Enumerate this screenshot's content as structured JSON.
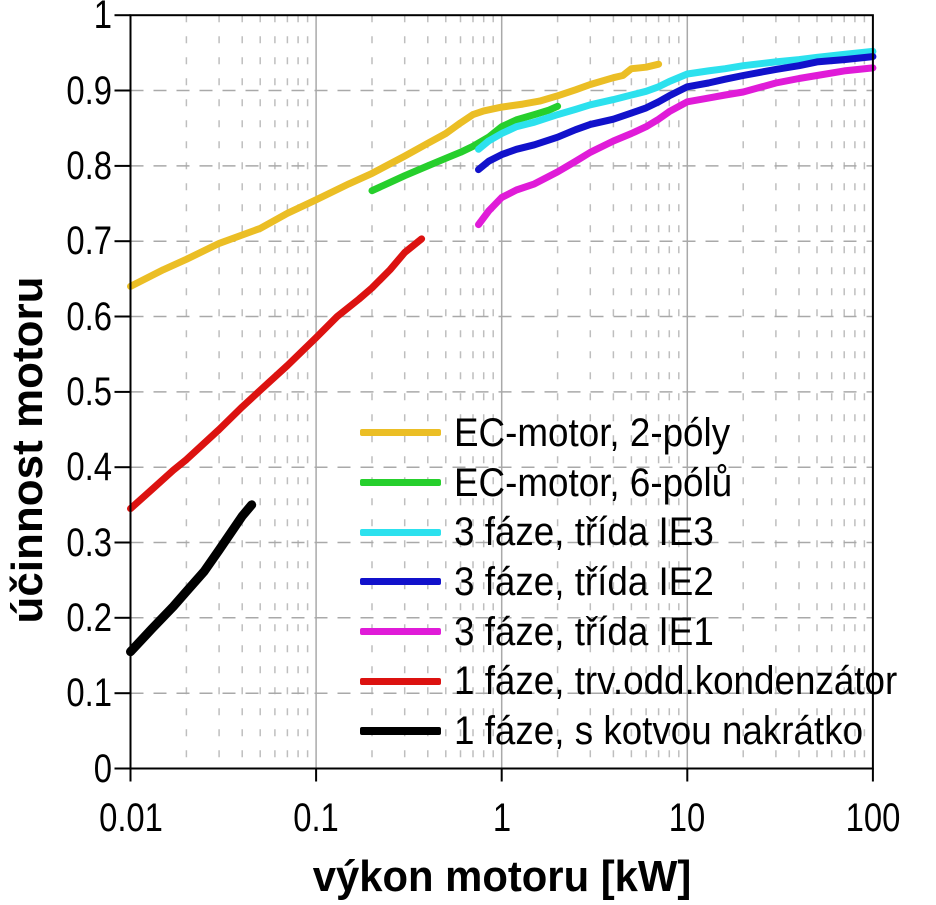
{
  "figure": {
    "x_axis_title": "výkon motoru [kW]",
    "y_axis_title": "účinnost motoru"
  },
  "chart_data": {
    "type": "line",
    "title": "",
    "xlabel": "výkon motoru [kW]",
    "ylabel": "účinnost motoru",
    "x_scale": "log",
    "xlim": [
      0.01,
      100
    ],
    "ylim": [
      0,
      1
    ],
    "x_ticks": [
      {
        "v": 0.01,
        "label": "0.01"
      },
      {
        "v": 0.1,
        "label": "0.1"
      },
      {
        "v": 1,
        "label": "1"
      },
      {
        "v": 10,
        "label": "10"
      },
      {
        "v": 100,
        "label": "100"
      }
    ],
    "y_ticks": [
      {
        "v": 0,
        "label": "0"
      },
      {
        "v": 0.1,
        "label": "0.1"
      },
      {
        "v": 0.2,
        "label": "0.2"
      },
      {
        "v": 0.3,
        "label": "0.3"
      },
      {
        "v": 0.4,
        "label": "0.4"
      },
      {
        "v": 0.5,
        "label": "0.5"
      },
      {
        "v": 0.6,
        "label": "0.6"
      },
      {
        "v": 0.7,
        "label": "0.7"
      },
      {
        "v": 0.8,
        "label": "0.8"
      },
      {
        "v": 0.9,
        "label": "0.9"
      },
      {
        "v": 1,
        "label": "1"
      }
    ],
    "grid": {
      "horizontal_major": "dashed",
      "vertical_minor": "dashed",
      "vertical_decade": "solid",
      "color_major": "#A9A9A9",
      "color_minor": "#BEBEBE"
    },
    "legend_position": "inside-lower-right",
    "axis_color": "#000000",
    "series": [
      {
        "name": "EC-motor, 2-póly",
        "color": "#EBBE25",
        "width": 7,
        "points": [
          [
            0.01,
            0.64
          ],
          [
            0.015,
            0.662
          ],
          [
            0.02,
            0.676
          ],
          [
            0.03,
            0.697
          ],
          [
            0.05,
            0.717
          ],
          [
            0.07,
            0.737
          ],
          [
            0.1,
            0.755
          ],
          [
            0.15,
            0.776
          ],
          [
            0.2,
            0.79
          ],
          [
            0.3,
            0.813
          ],
          [
            0.4,
            0.83
          ],
          [
            0.5,
            0.843
          ],
          [
            0.6,
            0.857
          ],
          [
            0.7,
            0.868
          ],
          [
            0.8,
            0.873
          ],
          [
            1,
            0.878
          ],
          [
            1.3,
            0.882
          ],
          [
            1.6,
            0.886
          ],
          [
            2,
            0.893
          ],
          [
            2.5,
            0.901
          ],
          [
            3,
            0.908
          ],
          [
            4,
            0.917
          ],
          [
            4.5,
            0.92
          ],
          [
            5,
            0.929
          ],
          [
            6,
            0.931
          ],
          [
            7,
            0.935
          ]
        ]
      },
      {
        "name": "EC-motor, 6-pólů",
        "color": "#26CF2C",
        "width": 7,
        "points": [
          [
            0.2,
            0.767
          ],
          [
            0.25,
            0.778
          ],
          [
            0.3,
            0.787
          ],
          [
            0.4,
            0.8
          ],
          [
            0.5,
            0.81
          ],
          [
            0.6,
            0.818
          ],
          [
            0.7,
            0.826
          ],
          [
            0.85,
            0.838
          ],
          [
            1,
            0.852
          ],
          [
            1.2,
            0.861
          ],
          [
            1.5,
            0.868
          ],
          [
            1.8,
            0.874
          ],
          [
            2,
            0.879
          ]
        ]
      },
      {
        "name": "3 fáze, třída IE3",
        "color": "#2CE1EE",
        "width": 7,
        "points": [
          [
            0.75,
            0.822
          ],
          [
            0.85,
            0.833
          ],
          [
            1,
            0.843
          ],
          [
            1.2,
            0.852
          ],
          [
            1.5,
            0.858
          ],
          [
            2,
            0.868
          ],
          [
            2.5,
            0.875
          ],
          [
            3,
            0.881
          ],
          [
            4,
            0.888
          ],
          [
            5,
            0.894
          ],
          [
            6,
            0.899
          ],
          [
            7,
            0.905
          ],
          [
            8,
            0.912
          ],
          [
            10,
            0.922
          ],
          [
            13,
            0.926
          ],
          [
            16,
            0.929
          ],
          [
            20,
            0.933
          ],
          [
            30,
            0.938
          ],
          [
            40,
            0.941
          ],
          [
            50,
            0.944
          ],
          [
            70,
            0.948
          ],
          [
            100,
            0.952
          ]
        ]
      },
      {
        "name": "3 fáze, třída IE2",
        "color": "#1111CB",
        "width": 7,
        "points": [
          [
            0.75,
            0.795
          ],
          [
            0.85,
            0.806
          ],
          [
            1,
            0.815
          ],
          [
            1.2,
            0.822
          ],
          [
            1.5,
            0.828
          ],
          [
            2,
            0.838
          ],
          [
            2.5,
            0.848
          ],
          [
            3,
            0.855
          ],
          [
            4,
            0.862
          ],
          [
            5,
            0.87
          ],
          [
            6,
            0.877
          ],
          [
            7,
            0.885
          ],
          [
            8,
            0.893
          ],
          [
            10,
            0.905
          ],
          [
            13,
            0.91
          ],
          [
            16,
            0.915
          ],
          [
            20,
            0.92
          ],
          [
            30,
            0.928
          ],
          [
            40,
            0.933
          ],
          [
            50,
            0.938
          ],
          [
            70,
            0.941
          ],
          [
            100,
            0.945
          ]
        ]
      },
      {
        "name": "3 fáze, třída IE1",
        "color": "#E01BD8",
        "width": 7,
        "points": [
          [
            0.75,
            0.722
          ],
          [
            0.85,
            0.74
          ],
          [
            1,
            0.758
          ],
          [
            1.2,
            0.768
          ],
          [
            1.5,
            0.776
          ],
          [
            2,
            0.792
          ],
          [
            2.5,
            0.806
          ],
          [
            3,
            0.818
          ],
          [
            4,
            0.833
          ],
          [
            5,
            0.843
          ],
          [
            6,
            0.852
          ],
          [
            7,
            0.862
          ],
          [
            8,
            0.872
          ],
          [
            10,
            0.885
          ],
          [
            13,
            0.89
          ],
          [
            16,
            0.894
          ],
          [
            20,
            0.898
          ],
          [
            30,
            0.91
          ],
          [
            40,
            0.916
          ],
          [
            50,
            0.92
          ],
          [
            70,
            0.926
          ],
          [
            100,
            0.93
          ]
        ]
      },
      {
        "name": "1 fáze, trv.odd.kondenzátor",
        "color": "#DC1210",
        "width": 7,
        "points": [
          [
            0.01,
            0.345
          ],
          [
            0.013,
            0.37
          ],
          [
            0.017,
            0.396
          ],
          [
            0.02,
            0.41
          ],
          [
            0.03,
            0.45
          ],
          [
            0.04,
            0.48
          ],
          [
            0.05,
            0.502
          ],
          [
            0.07,
            0.535
          ],
          [
            0.1,
            0.572
          ],
          [
            0.13,
            0.6
          ],
          [
            0.17,
            0.623
          ],
          [
            0.2,
            0.638
          ],
          [
            0.25,
            0.662
          ],
          [
            0.3,
            0.685
          ],
          [
            0.37,
            0.703
          ]
        ]
      },
      {
        "name": "1 fáze, s kotvou nakrátko",
        "color": "#000000",
        "width": 9,
        "points": [
          [
            0.01,
            0.155
          ],
          [
            0.013,
            0.185
          ],
          [
            0.017,
            0.215
          ],
          [
            0.02,
            0.235
          ],
          [
            0.025,
            0.262
          ],
          [
            0.03,
            0.29
          ],
          [
            0.04,
            0.335
          ],
          [
            0.045,
            0.35
          ]
        ]
      }
    ]
  }
}
